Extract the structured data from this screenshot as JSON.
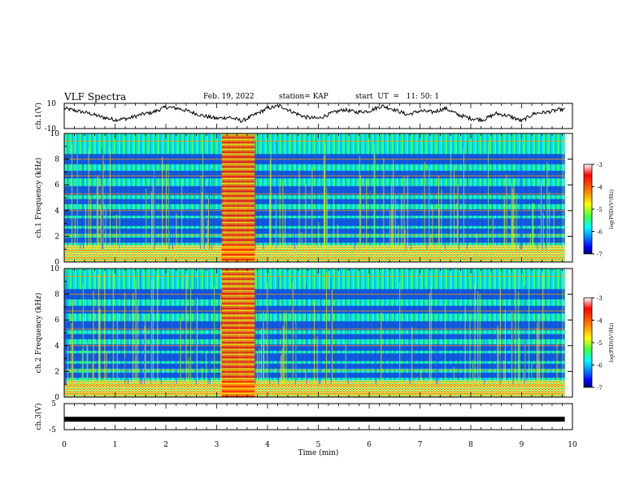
{
  "header": {
    "title": "VLF Spectra",
    "date": "Feb. 19, 2022",
    "station": "station= KAP",
    "start": "start  UT  =   11: 50: 1"
  },
  "colorbar": {
    "label": "log(PSD)(V²/Hz)",
    "ticks": [
      "-3",
      "-4",
      "-5",
      "-6",
      "-7"
    ],
    "range": [
      -7,
      -3
    ],
    "colors": [
      "#000080",
      "#0000ff",
      "#0080ff",
      "#00ffff",
      "#80ff40",
      "#ffff00",
      "#ff8000",
      "#ff0000",
      "#ffffff"
    ]
  },
  "chart_data": [
    {
      "type": "line",
      "panel": "ch1-waveform",
      "ylabel": "ch.1(V)",
      "ylim": [
        -10,
        10
      ],
      "yticks": [
        "10",
        "-10"
      ],
      "xlim": [
        0,
        10
      ],
      "color": "#000000",
      "series": [
        {
          "x": [
            0,
            0.25,
            0.5,
            0.75,
            1,
            1.25,
            1.5,
            1.75,
            2,
            2.25,
            2.5,
            2.75,
            3,
            3.25,
            3.5,
            3.75,
            4,
            4.25,
            4.5,
            4.75,
            5,
            5.25,
            5.5,
            5.75,
            6,
            6.25,
            6.5,
            6.75,
            7,
            7.25,
            7.5,
            7.75,
            8,
            8.25,
            8.5,
            8.75,
            9,
            9.25,
            9.5,
            9.75
          ],
          "values": [
            6,
            4,
            2,
            -1,
            -3,
            -2,
            1,
            3,
            7,
            6,
            3,
            0,
            -2,
            -1,
            -4,
            1,
            6,
            8,
            3,
            -1,
            -2,
            2,
            5,
            3,
            4,
            8,
            5,
            1,
            4,
            3,
            6,
            1,
            -2,
            -3,
            2,
            0,
            -4,
            2,
            3,
            5
          ]
        }
      ]
    },
    {
      "type": "heatmap",
      "panel": "ch1-spectrogram",
      "ylabel": "ch.1  Frequency  (kHz)",
      "ylim": [
        0,
        10
      ],
      "yticks": [
        "0",
        "2",
        "4",
        "6",
        "8",
        "10"
      ],
      "xlim": [
        0,
        10
      ],
      "burst_interval_min": [
        3.1,
        3.75
      ]
    },
    {
      "type": "heatmap",
      "panel": "ch2-spectrogram",
      "ylabel": "ch.2  Frequency  (kHz)",
      "ylim": [
        0,
        10
      ],
      "yticks": [
        "0",
        "2",
        "4",
        "6",
        "8",
        "10"
      ],
      "xlim": [
        0,
        10
      ],
      "burst_interval_min": [
        3.1,
        3.75
      ]
    },
    {
      "type": "line",
      "panel": "ch3-waveform",
      "ylabel": "ch.3(V)",
      "ylim": [
        -5,
        5
      ],
      "yticks": [
        "5",
        "-5"
      ],
      "xlim": [
        0,
        10
      ],
      "xlabel": "Time  (min)",
      "xticks": [
        "0",
        "1",
        "2",
        "3",
        "4",
        "5",
        "6",
        "7",
        "8",
        "9",
        "10"
      ],
      "series": [
        {
          "x": [
            0,
            9.85
          ],
          "values": [
            -1,
            -1
          ]
        }
      ]
    }
  ]
}
